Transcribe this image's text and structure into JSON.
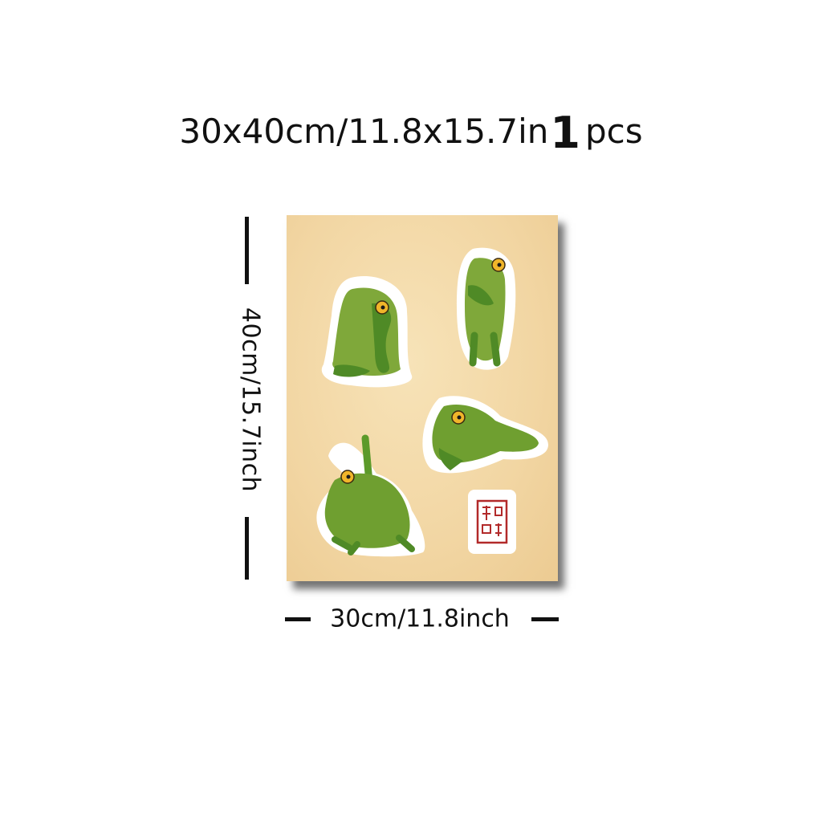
{
  "title": {
    "size_text": "30x40cm/11.8x15.7in",
    "quantity": "1",
    "quantity_unit": "pcs"
  },
  "dimensions": {
    "height_label": "40cm/15.7inch",
    "width_label": "30cm/11.8inch"
  },
  "poster": {
    "background_color": "#f2d6a3",
    "stickers": [
      {
        "subject": "frog-seated-pose"
      },
      {
        "subject": "frog-standing-hands-clasped"
      },
      {
        "subject": "frog-upward-stretch"
      },
      {
        "subject": "frog-side-plank-arm-raised"
      }
    ],
    "seal": {
      "color": "#b22a2a"
    }
  }
}
